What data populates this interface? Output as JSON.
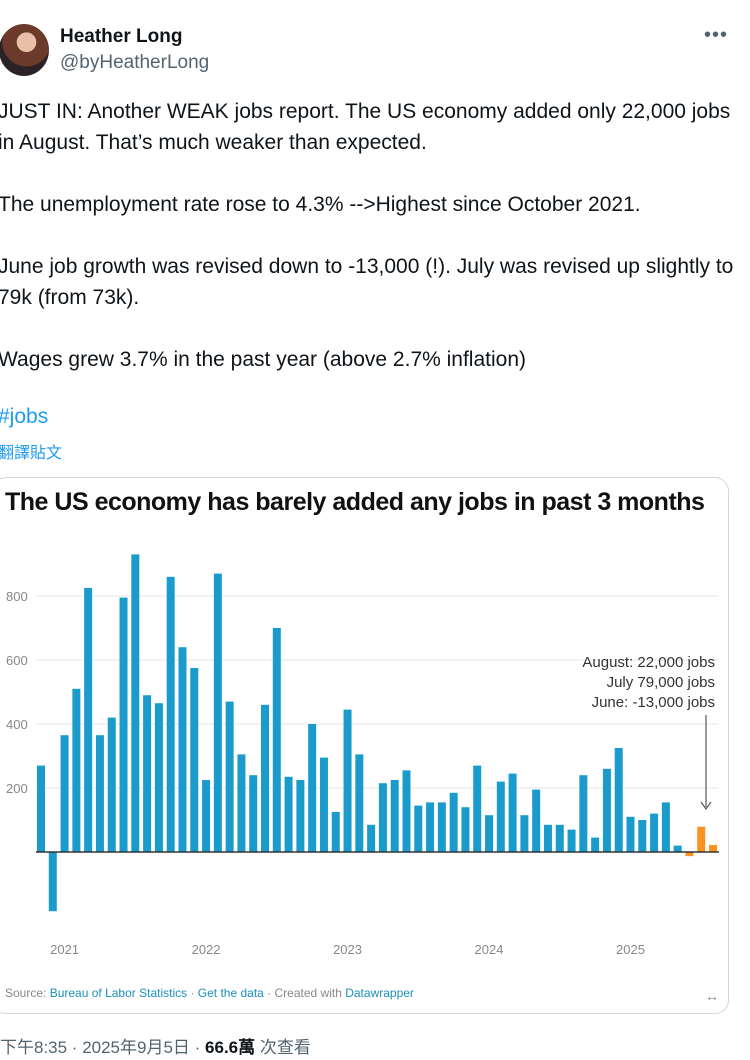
{
  "author": {
    "name": "Heather Long",
    "handle": "@byHeatherLong"
  },
  "more_icon": "more-horizontal-icon",
  "tweet": {
    "paragraphs": [
      "JUST IN: Another WEAK jobs report. The US economy added only 22,000 jobs in August. That’s much weaker than expected.",
      "The unemployment rate rose to 4.3% -->Highest since October 2021.",
      "June job growth was revised down to -13,000 (!). July was revised up slightly to 79k (from 73k).",
      "Wages grew 3.7% in the past year (above 2.7% inflation)"
    ],
    "hashtag": "#jobs",
    "translate": "翻譯貼文"
  },
  "card": {
    "source_label": "Source:",
    "source_link": "Bureau of Labor Statistics",
    "sep1": " · ",
    "get_data": "Get the data",
    "created_with": " · Created with ",
    "datawrapper": "Datawrapper",
    "expand_icon": "↔"
  },
  "chart_data": {
    "type": "bar",
    "title": "The US economy has barely added any jobs in past 3 months",
    "xlabel": "",
    "ylabel": "",
    "ylim": [
      -200,
      950
    ],
    "yticks": [
      200,
      400,
      600,
      800
    ],
    "xtick_labels": [
      "2021",
      "2022",
      "2023",
      "2024",
      "2025"
    ],
    "grid": true,
    "colors": {
      "default": "#1a9bcc",
      "highlight": "#f7931e",
      "grid": "#e6e6e6",
      "axis": "#333333"
    },
    "annotation": [
      "August: 22,000 jobs",
      "July 79,000 jobs",
      "June: -13,000 jobs"
    ],
    "period": "Nov 2020 – Aug 2025, monthly, thousands",
    "values": [
      270,
      -185,
      365,
      510,
      825,
      365,
      420,
      795,
      930,
      490,
      465,
      860,
      640,
      575,
      225,
      870,
      470,
      305,
      240,
      460,
      700,
      235,
      225,
      400,
      295,
      125,
      445,
      305,
      85,
      215,
      225,
      255,
      145,
      155,
      155,
      185,
      140,
      270,
      115,
      220,
      245,
      115,
      195,
      85,
      85,
      70,
      240,
      45,
      260,
      325,
      110,
      100,
      120,
      155,
      20,
      -13,
      79,
      22
    ],
    "highlight_last": 3
  },
  "footer": {
    "time": "下午8:35 · 2025年9月5日 · ",
    "views": "66.6萬",
    "views_label": " 次查看"
  }
}
